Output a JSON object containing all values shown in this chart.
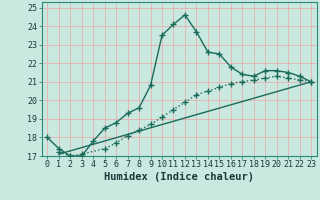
{
  "xlabel": "Humidex (Indice chaleur)",
  "xlim_min": -0.5,
  "xlim_max": 23.5,
  "ylim_min": 17.0,
  "ylim_max": 25.3,
  "yticks": [
    17,
    18,
    19,
    20,
    21,
    22,
    23,
    24,
    25
  ],
  "xticks": [
    0,
    1,
    2,
    3,
    4,
    5,
    6,
    7,
    8,
    9,
    10,
    11,
    12,
    13,
    14,
    15,
    16,
    17,
    18,
    19,
    20,
    21,
    22,
    23
  ],
  "background_color": "#c8e8e0",
  "grid_color": "#e8b0b0",
  "line_color": "#1a6b5a",
  "line1_x": [
    0,
    1,
    2,
    3,
    4,
    5,
    6,
    7,
    8,
    9,
    10,
    11,
    12,
    13,
    14,
    15,
    16,
    17,
    18,
    19,
    20,
    21,
    22,
    23
  ],
  "line1_y": [
    18.0,
    17.4,
    17.0,
    17.0,
    17.8,
    18.5,
    18.8,
    19.3,
    19.6,
    20.8,
    23.5,
    24.1,
    24.6,
    23.7,
    22.6,
    22.5,
    21.8,
    21.4,
    21.3,
    21.6,
    21.6,
    21.5,
    21.3,
    21.0
  ],
  "line2_x": [
    1,
    2,
    3,
    5,
    6,
    7,
    8,
    9,
    10,
    11,
    12,
    13,
    14,
    15,
    16,
    17,
    18,
    19,
    20,
    21,
    22,
    23
  ],
  "line2_y": [
    17.2,
    17.0,
    17.1,
    17.4,
    17.7,
    18.1,
    18.4,
    18.7,
    19.1,
    19.5,
    19.9,
    20.3,
    20.5,
    20.7,
    20.9,
    21.0,
    21.1,
    21.2,
    21.3,
    21.2,
    21.1,
    21.0
  ],
  "line3_x": [
    1,
    23
  ],
  "line3_y": [
    17.1,
    21.0
  ],
  "marker": "+",
  "marker_size": 4,
  "marker_linewidth": 1.0,
  "linewidth": 1.0,
  "font_family": "monospace",
  "xlabel_fontsize": 7.5,
  "tick_fontsize": 6.0
}
